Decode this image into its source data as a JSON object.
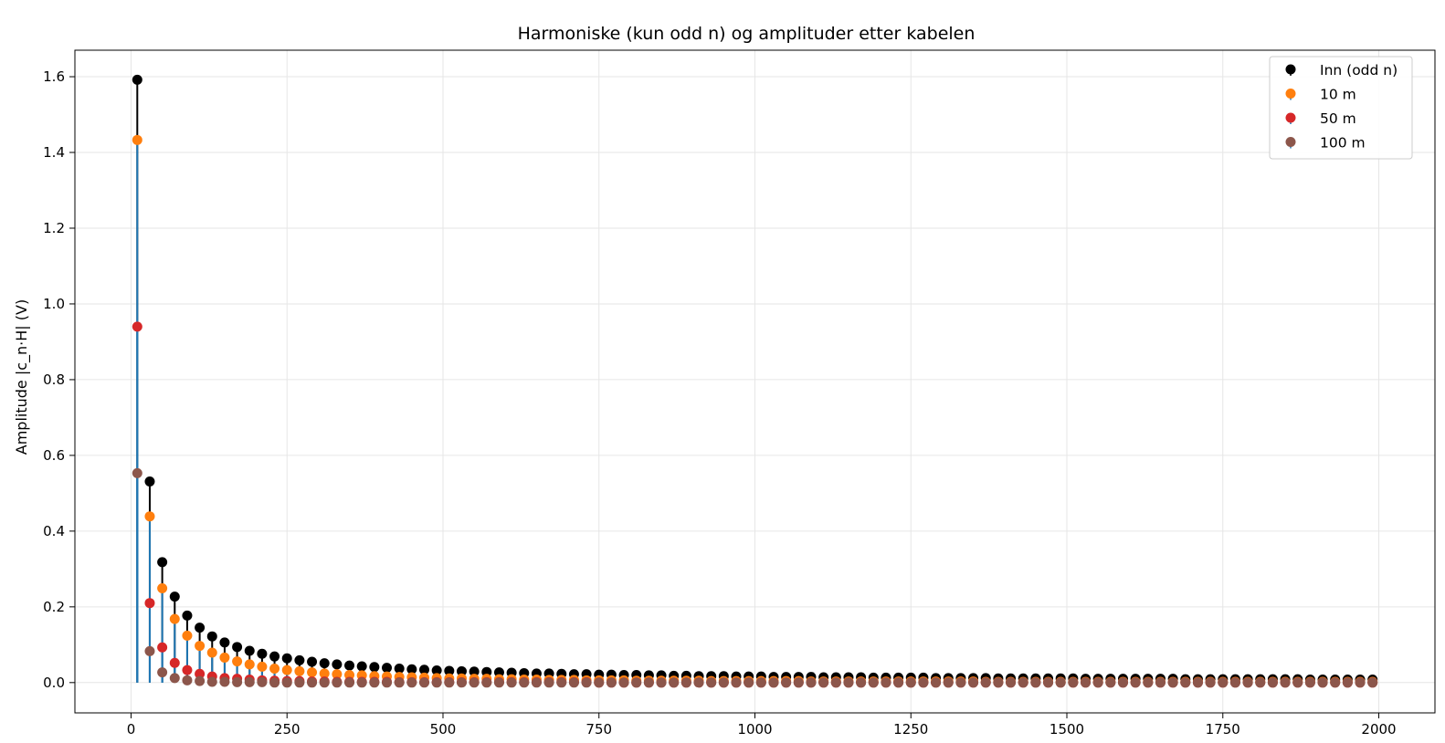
{
  "chart_data": {
    "type": "scatter",
    "title": "Harmoniske (kun odd n) og amplituder etter kabelen",
    "xlabel": "",
    "ylabel": "Amplitude |c_n·H| (V)",
    "xlim": [
      -90,
      2090
    ],
    "ylim": [
      -0.08,
      1.67
    ],
    "x_ticks": [
      0,
      250,
      500,
      750,
      1000,
      1250,
      1500,
      1750,
      2000
    ],
    "y_ticks": [
      0.0,
      0.2,
      0.4,
      0.6,
      0.8,
      1.0,
      1.2,
      1.4,
      1.6
    ],
    "x_tick_labels": [
      "0",
      "250",
      "500",
      "750",
      "1000",
      "1250",
      "1500",
      "1750",
      "2000"
    ],
    "y_tick_labels": [
      "0.0",
      "0.2",
      "0.4",
      "0.6",
      "0.8",
      "1.0",
      "1.2",
      "1.4",
      "1.6"
    ],
    "grid": true,
    "legend_position": "top-right",
    "x": [
      10,
      30,
      50,
      70,
      90,
      110,
      130,
      150,
      170,
      190,
      210,
      230,
      250,
      270,
      290,
      310,
      330,
      350,
      370,
      390,
      410,
      430,
      450,
      470,
      490,
      510,
      530,
      550,
      570,
      590,
      610,
      630,
      650,
      670,
      690,
      710,
      730,
      750,
      770,
      790,
      810,
      830,
      850,
      870,
      890,
      910,
      930,
      950,
      970,
      990,
      1010,
      1030,
      1050,
      1070,
      1090,
      1110,
      1130,
      1150,
      1170,
      1190,
      1210,
      1230,
      1250,
      1270,
      1290,
      1310,
      1330,
      1350,
      1370,
      1390,
      1410,
      1430,
      1450,
      1470,
      1490,
      1510,
      1530,
      1550,
      1570,
      1590,
      1610,
      1630,
      1650,
      1670,
      1690,
      1710,
      1730,
      1750,
      1770,
      1790,
      1810,
      1830,
      1850,
      1870,
      1890,
      1910,
      1930,
      1950,
      1970,
      1990
    ],
    "series": [
      {
        "name": "Inn (odd n)",
        "color": "#000000",
        "stem_color": "#000000",
        "values": [
          1.592,
          0.531,
          0.318,
          0.227,
          0.177,
          0.145,
          0.122,
          0.106,
          0.094,
          0.084,
          0.076,
          0.069,
          0.064,
          0.059,
          0.055,
          0.051,
          0.048,
          0.045,
          0.043,
          0.041,
          0.039,
          0.037,
          0.035,
          0.034,
          0.032,
          0.031,
          0.03,
          0.029,
          0.028,
          0.027,
          0.026,
          0.025,
          0.024,
          0.024,
          0.023,
          0.022,
          0.022,
          0.021,
          0.021,
          0.02,
          0.02,
          0.019,
          0.019,
          0.018,
          0.018,
          0.017,
          0.017,
          0.017,
          0.016,
          0.016,
          0.016,
          0.015,
          0.015,
          0.015,
          0.015,
          0.014,
          0.014,
          0.014,
          0.014,
          0.013,
          0.013,
          0.013,
          0.013,
          0.013,
          0.012,
          0.012,
          0.012,
          0.012,
          0.012,
          0.011,
          0.011,
          0.011,
          0.011,
          0.011,
          0.011,
          0.011,
          0.01,
          0.01,
          0.01,
          0.01,
          0.01,
          0.01,
          0.01,
          0.01,
          0.009,
          0.009,
          0.009,
          0.009,
          0.009,
          0.009,
          0.009,
          0.009,
          0.009,
          0.009,
          0.008,
          0.008,
          0.008,
          0.008,
          0.008,
          0.008
        ]
      },
      {
        "name": "10 m",
        "color": "#ff7f0e",
        "stem_color": "#1f77b4",
        "values": [
          1.433,
          0.439,
          0.249,
          0.168,
          0.124,
          0.097,
          0.079,
          0.066,
          0.056,
          0.048,
          0.042,
          0.037,
          0.033,
          0.03,
          0.027,
          0.024,
          0.022,
          0.02,
          0.019,
          0.017,
          0.016,
          0.015,
          0.014,
          0.013,
          0.012,
          0.011,
          0.011,
          0.01,
          0.01,
          0.009,
          0.009,
          0.008,
          0.008,
          0.007,
          0.007,
          0.007,
          0.006,
          0.006,
          0.006,
          0.006,
          0.005,
          0.005,
          0.005,
          0.005,
          0.005,
          0.005,
          0.004,
          0.004,
          0.004,
          0.004,
          0.004,
          0.004,
          0.004,
          0.004,
          0.003,
          0.003,
          0.003,
          0.003,
          0.003,
          0.003,
          0.003,
          0.003,
          0.003,
          0.003,
          0.003,
          0.003,
          0.003,
          0.003,
          0.002,
          0.002,
          0.002,
          0.002,
          0.002,
          0.002,
          0.002,
          0.002,
          0.002,
          0.002,
          0.002,
          0.002,
          0.002,
          0.002,
          0.002,
          0.002,
          0.002,
          0.002,
          0.002,
          0.002,
          0.002,
          0.002,
          0.002,
          0.002,
          0.002,
          0.002,
          0.002,
          0.002,
          0.002,
          0.002,
          0.002,
          0.002
        ]
      },
      {
        "name": "50 m",
        "color": "#d62728",
        "stem_color": "#1f77b4",
        "values": [
          0.94,
          0.21,
          0.093,
          0.052,
          0.033,
          0.023,
          0.016,
          0.012,
          0.01,
          0.008,
          0.006,
          0.005,
          0.004,
          0.004,
          0.003,
          0.003,
          0.002,
          0.002,
          0.002,
          0.002,
          0.002,
          0.001,
          0.001,
          0.001,
          0.001,
          0.001,
          0.001,
          0.001,
          0.001,
          0.001,
          0.001,
          0.001,
          0.001,
          0.001,
          0.001,
          0.001,
          0.001,
          0.0,
          0.0,
          0.0,
          0.0,
          0.0,
          0.0,
          0.0,
          0.0,
          0.0,
          0.0,
          0.0,
          0.0,
          0.0,
          0.0,
          0.0,
          0.0,
          0.0,
          0.0,
          0.0,
          0.0,
          0.0,
          0.0,
          0.0,
          0.0,
          0.0,
          0.0,
          0.0,
          0.0,
          0.0,
          0.0,
          0.0,
          0.0,
          0.0,
          0.0,
          0.0,
          0.0,
          0.0,
          0.0,
          0.0,
          0.0,
          0.0,
          0.0,
          0.0,
          0.0,
          0.0,
          0.0,
          0.0,
          0.0,
          0.0,
          0.0,
          0.0,
          0.0,
          0.0,
          0.0,
          0.0,
          0.0,
          0.0,
          0.0,
          0.0,
          0.0,
          0.0,
          0.0,
          0.0
        ]
      },
      {
        "name": "100 m",
        "color": "#8c564b",
        "stem_color": "#1f77b4",
        "values": [
          0.553,
          0.083,
          0.027,
          0.012,
          0.006,
          0.004,
          0.002,
          0.002,
          0.001,
          0.001,
          0.001,
          0.0,
          0.0,
          0.0,
          0.0,
          0.0,
          0.0,
          0.0,
          0.0,
          0.0,
          0.0,
          0.0,
          0.0,
          0.0,
          0.0,
          0.0,
          0.0,
          0.0,
          0.0,
          0.0,
          0.0,
          0.0,
          0.0,
          0.0,
          0.0,
          0.0,
          0.0,
          0.0,
          0.0,
          0.0,
          0.0,
          0.0,
          0.0,
          0.0,
          0.0,
          0.0,
          0.0,
          0.0,
          0.0,
          0.0,
          0.0,
          0.0,
          0.0,
          0.0,
          0.0,
          0.0,
          0.0,
          0.0,
          0.0,
          0.0,
          0.0,
          0.0,
          0.0,
          0.0,
          0.0,
          0.0,
          0.0,
          0.0,
          0.0,
          0.0,
          0.0,
          0.0,
          0.0,
          0.0,
          0.0,
          0.0,
          0.0,
          0.0,
          0.0,
          0.0,
          0.0,
          0.0,
          0.0,
          0.0,
          0.0,
          0.0,
          0.0,
          0.0,
          0.0,
          0.0,
          0.0,
          0.0,
          0.0,
          0.0,
          0.0,
          0.0,
          0.0,
          0.0,
          0.0,
          0.0
        ]
      }
    ]
  }
}
